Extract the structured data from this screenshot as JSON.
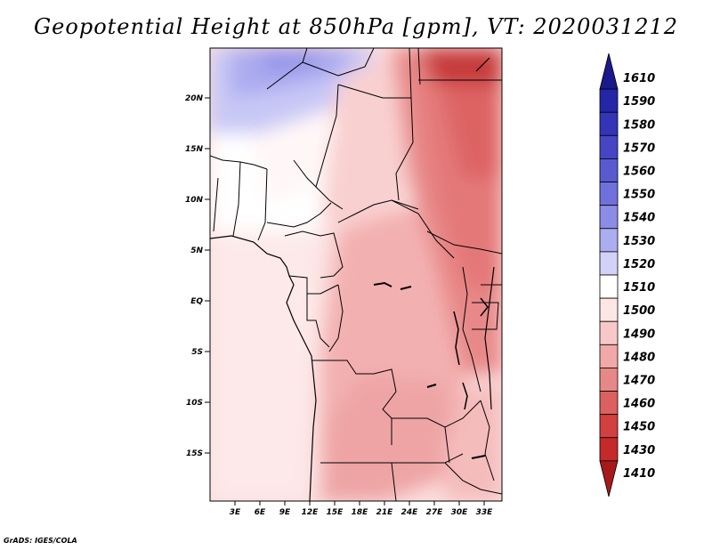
{
  "title": "Geopotential Height at 850hPa [gpm], VT: 2020031212",
  "credit": "GrADS: IGES/COLA",
  "map": {
    "lat_labels": [
      "20N",
      "15N",
      "10N",
      "5N",
      "EQ",
      "5S",
      "10S",
      "15S"
    ],
    "lon_labels": [
      "3E",
      "6E",
      "9E",
      "12E",
      "15E",
      "18E",
      "21E",
      "24E",
      "27E",
      "30E",
      "33E"
    ]
  },
  "colorbar": {
    "levels": [
      "1610",
      "1590",
      "1580",
      "1570",
      "1560",
      "1550",
      "1540",
      "1530",
      "1520",
      "1510",
      "1500",
      "1490",
      "1480",
      "1470",
      "1460",
      "1450",
      "1430",
      "1410"
    ],
    "colors": [
      "#1a1a8c",
      "#2525a8",
      "#3434b8",
      "#4646c4",
      "#5a5ad0",
      "#7070dc",
      "#8c8ce6",
      "#acacf0",
      "#d2d2f8",
      "#ffffff",
      "#fde6e6",
      "#f8c8c8",
      "#f0a8a8",
      "#e68888",
      "#dc6060",
      "#d24040",
      "#c42a2a",
      "#a81a1a"
    ]
  },
  "chart_data": {
    "type": "heatmap",
    "title": "Geopotential Height at 850hPa [gpm], VT: 2020031212",
    "x_ticks": [
      "3E",
      "6E",
      "9E",
      "12E",
      "15E",
      "18E",
      "21E",
      "24E",
      "27E",
      "30E",
      "33E"
    ],
    "y_ticks": [
      "20N",
      "15N",
      "10N",
      "5N",
      "EQ",
      "5S",
      "10S",
      "15S"
    ],
    "colorbar_levels": [
      1610,
      1590,
      1580,
      1570,
      1560,
      1550,
      1540,
      1530,
      1520,
      1510,
      1500,
      1490,
      1480,
      1470,
      1460,
      1450,
      1430,
      1410
    ]
  }
}
